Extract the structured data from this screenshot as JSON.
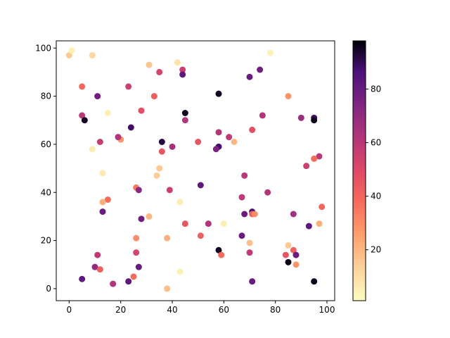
{
  "chart_data": {
    "type": "scatter",
    "title": "",
    "xlabel": "",
    "ylabel": "",
    "xlim": [
      -5,
      103
    ],
    "ylim": [
      -5,
      103
    ],
    "xticks": [
      "0",
      "20",
      "40",
      "60",
      "80",
      "100"
    ],
    "yticks": [
      "0",
      "20",
      "40",
      "60",
      "80",
      "100"
    ],
    "grid": false,
    "colormap": "magma_r",
    "colorbar": {
      "range": [
        1,
        98
      ],
      "ticks": [
        "20",
        "40",
        "60",
        "80"
      ]
    },
    "points": [
      {
        "x": 0,
        "y": 97,
        "c": 15
      },
      {
        "x": 1,
        "y": 99,
        "c": 4
      },
      {
        "x": 9,
        "y": 97,
        "c": 12
      },
      {
        "x": 5,
        "y": 84,
        "c": 40
      },
      {
        "x": 11,
        "y": 80,
        "c": 78
      },
      {
        "x": 5,
        "y": 72,
        "c": 60
      },
      {
        "x": 6,
        "y": 70,
        "c": 95
      },
      {
        "x": 15,
        "y": 73,
        "c": 5
      },
      {
        "x": 9,
        "y": 58,
        "c": 6
      },
      {
        "x": 12,
        "y": 61,
        "c": 57
      },
      {
        "x": 13,
        "y": 48,
        "c": 7
      },
      {
        "x": 15,
        "y": 37,
        "c": 38
      },
      {
        "x": 13,
        "y": 36,
        "c": 22
      },
      {
        "x": 13,
        "y": 32,
        "c": 80
      },
      {
        "x": 11,
        "y": 14,
        "c": 58
      },
      {
        "x": 10,
        "y": 9,
        "c": 70
      },
      {
        "x": 12,
        "y": 8,
        "c": 42
      },
      {
        "x": 5,
        "y": 4,
        "c": 82
      },
      {
        "x": 17,
        "y": 2,
        "c": 62
      },
      {
        "x": 20,
        "y": 62,
        "c": 28
      },
      {
        "x": 19,
        "y": 63,
        "c": 62
      },
      {
        "x": 23,
        "y": 84,
        "c": 55
      },
      {
        "x": 24,
        "y": 67,
        "c": 88
      },
      {
        "x": 28,
        "y": 74,
        "c": 48
      },
      {
        "x": 26,
        "y": 42,
        "c": 35
      },
      {
        "x": 27,
        "y": 41,
        "c": 72
      },
      {
        "x": 28,
        "y": 29,
        "c": 78
      },
      {
        "x": 31,
        "y": 30,
        "c": 20
      },
      {
        "x": 26,
        "y": 21,
        "c": 30
      },
      {
        "x": 26,
        "y": 15,
        "c": 52
      },
      {
        "x": 27,
        "y": 9,
        "c": 80
      },
      {
        "x": 25,
        "y": 5,
        "c": 38
      },
      {
        "x": 23,
        "y": 3,
        "c": 82
      },
      {
        "x": 31,
        "y": 93,
        "c": 16
      },
      {
        "x": 35,
        "y": 90,
        "c": 52
      },
      {
        "x": 33,
        "y": 80,
        "c": 42
      },
      {
        "x": 36,
        "y": 61,
        "c": 92
      },
      {
        "x": 36,
        "y": 57,
        "c": 45
      },
      {
        "x": 40,
        "y": 59,
        "c": 65
      },
      {
        "x": 35,
        "y": 50,
        "c": 15
      },
      {
        "x": 34,
        "y": 47,
        "c": 14
      },
      {
        "x": 39,
        "y": 41,
        "c": 55
      },
      {
        "x": 38,
        "y": 21,
        "c": 22
      },
      {
        "x": 38,
        "y": 0,
        "c": 18
      },
      {
        "x": 42,
        "y": 94,
        "c": 8
      },
      {
        "x": 44,
        "y": 91,
        "c": 55
      },
      {
        "x": 44,
        "y": 89,
        "c": 82
      },
      {
        "x": 45,
        "y": 73,
        "c": 95
      },
      {
        "x": 45,
        "y": 70,
        "c": 62
      },
      {
        "x": 43,
        "y": 36,
        "c": 5
      },
      {
        "x": 45,
        "y": 27,
        "c": 45
      },
      {
        "x": 43,
        "y": 7,
        "c": 4
      },
      {
        "x": 50,
        "y": 61,
        "c": 45
      },
      {
        "x": 51,
        "y": 43,
        "c": 82
      },
      {
        "x": 51,
        "y": 22,
        "c": 42
      },
      {
        "x": 54,
        "y": 27,
        "c": 62
      },
      {
        "x": 58,
        "y": 81,
        "c": 95
      },
      {
        "x": 58,
        "y": 65,
        "c": 62
      },
      {
        "x": 58,
        "y": 59,
        "c": 88
      },
      {
        "x": 57,
        "y": 58,
        "c": 75
      },
      {
        "x": 62,
        "y": 63,
        "c": 58
      },
      {
        "x": 64,
        "y": 61,
        "c": 20
      },
      {
        "x": 60,
        "y": 27,
        "c": 5
      },
      {
        "x": 58,
        "y": 16,
        "c": 95
      },
      {
        "x": 59,
        "y": 14,
        "c": 38
      },
      {
        "x": 70,
        "y": 88,
        "c": 80
      },
      {
        "x": 74,
        "y": 91,
        "c": 78
      },
      {
        "x": 75,
        "y": 72,
        "c": 62
      },
      {
        "x": 71,
        "y": 66,
        "c": 48
      },
      {
        "x": 68,
        "y": 47,
        "c": 60
      },
      {
        "x": 67,
        "y": 38,
        "c": 58
      },
      {
        "x": 77,
        "y": 40,
        "c": 62
      },
      {
        "x": 68,
        "y": 31,
        "c": 80
      },
      {
        "x": 71,
        "y": 32,
        "c": 88
      },
      {
        "x": 71,
        "y": 31,
        "c": 42
      },
      {
        "x": 72,
        "y": 31,
        "c": 30
      },
      {
        "x": 67,
        "y": 22,
        "c": 80
      },
      {
        "x": 70,
        "y": 19,
        "c": 18
      },
      {
        "x": 70,
        "y": 15,
        "c": 58
      },
      {
        "x": 71,
        "y": 3,
        "c": 80
      },
      {
        "x": 78,
        "y": 98,
        "c": 4
      },
      {
        "x": 85,
        "y": 80,
        "c": 28
      },
      {
        "x": 90,
        "y": 71,
        "c": 68
      },
      {
        "x": 95,
        "y": 71,
        "c": 88
      },
      {
        "x": 95,
        "y": 70,
        "c": 96
      },
      {
        "x": 97,
        "y": 55,
        "c": 60
      },
      {
        "x": 92,
        "y": 51,
        "c": 55
      },
      {
        "x": 95,
        "y": 54,
        "c": 38
      },
      {
        "x": 87,
        "y": 31,
        "c": 65
      },
      {
        "x": 93,
        "y": 26,
        "c": 82
      },
      {
        "x": 98,
        "y": 34,
        "c": 40
      },
      {
        "x": 97,
        "y": 27,
        "c": 22
      },
      {
        "x": 85,
        "y": 18,
        "c": 15
      },
      {
        "x": 87,
        "y": 16,
        "c": 42
      },
      {
        "x": 84,
        "y": 14,
        "c": 45
      },
      {
        "x": 88,
        "y": 14,
        "c": 80
      },
      {
        "x": 85,
        "y": 11,
        "c": 96
      },
      {
        "x": 88,
        "y": 10,
        "c": 28
      },
      {
        "x": 95,
        "y": 3,
        "c": 96
      }
    ]
  }
}
